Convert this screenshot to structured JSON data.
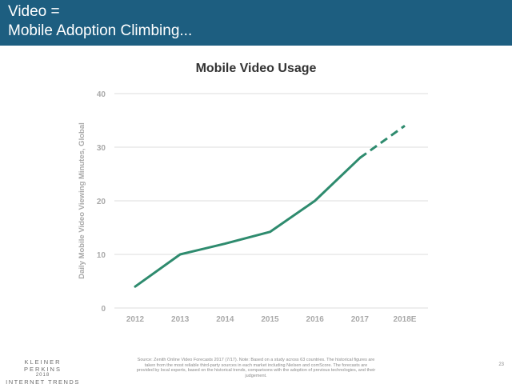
{
  "slide": {
    "title_line1": "Video =",
    "title_line2": "Mobile Adoption Climbing...",
    "source_text": "Source: Zenith Online Video Forecasts 2017 (7/17).  Note: Based on a study across 63 countries. The historical figures are taken from the most reliable third-party sources in each market including Nielsen and comScore. The forecasts are provided by local experts, based on the historical trends, comparisons with the adoption of previous technologies, and their judgement.",
    "page_number": "23",
    "logo": {
      "line1": "KLEINER PERKINS",
      "line2": "2018",
      "line3": "INTERNET TRENDS"
    }
  },
  "colors": {
    "header_bg": "#1d5e80",
    "series_line": "#2e8b6e",
    "grid": "#dcdcdc",
    "tick_label": "#a9a9a9"
  },
  "chart_data": {
    "type": "line",
    "title": "Mobile Video Usage",
    "xlabel": "",
    "ylabel": "Daily Mobile Video Viewing Minutes, Global",
    "categories": [
      "2012",
      "2013",
      "2014",
      "2015",
      "2016",
      "2017",
      "2018E"
    ],
    "series": [
      {
        "values": [
          4,
          10,
          12,
          14.2,
          20,
          28,
          34
        ],
        "forecast_from": "2017"
      }
    ],
    "ylim": [
      0,
      40
    ],
    "yticks": [
      0,
      10,
      20,
      30,
      40
    ],
    "grid": true,
    "legend": "none"
  }
}
